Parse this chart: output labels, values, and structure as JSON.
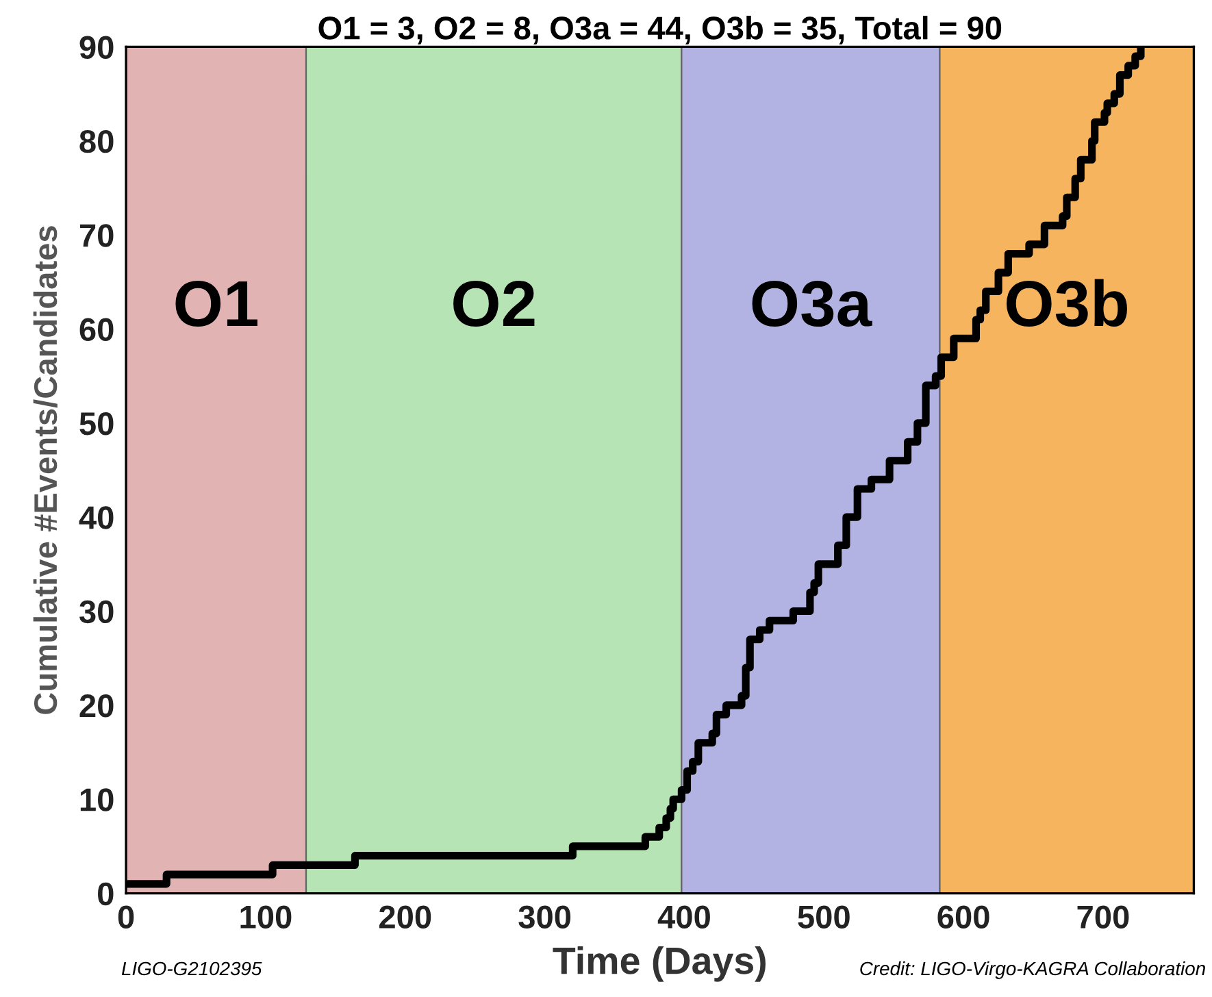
{
  "chart_data": {
    "type": "step",
    "title": "O1 = 3, O2 = 8, O3a = 44, O3b = 35, Total = 90",
    "xlabel": "Time (Days)",
    "ylabel": "Cumulative #Events/Candidates",
    "annotations": [
      "LIGO-G2102395",
      "Credit: LIGO-Virgo-KAGRA Collaboration"
    ],
    "bands": [
      {
        "axis": "x",
        "from": 0,
        "to": 129,
        "label": "O1",
        "color": "#e2b3b3"
      },
      {
        "axis": "x",
        "from": 129,
        "to": 398,
        "label": "O2",
        "color": "#b7e4b5"
      },
      {
        "axis": "x",
        "from": 398,
        "to": 583,
        "label": "O3a",
        "color": "#b3b3e3"
      },
      {
        "axis": "x",
        "from": 583,
        "to": 765,
        "label": "O3b",
        "color": "#f7b45e"
      }
    ],
    "series": [
      {
        "color": "#000000",
        "x": [
          1,
          29,
          105,
          164,
          320,
          372,
          382,
          387,
          390,
          392,
          398,
          402,
          406,
          410,
          420,
          423,
          430,
          441,
          444,
          447,
          454,
          461,
          478,
          490,
          493,
          496,
          510,
          516,
          524,
          534,
          547,
          560,
          567,
          573,
          580,
          584,
          593,
          609,
          612,
          616,
          625,
          632,
          647,
          658,
          671,
          674,
          680,
          684,
          692,
          694,
          701,
          703,
          708,
          712,
          718,
          723,
          727
        ],
        "values": [
          1,
          2,
          3,
          4,
          5,
          6,
          7,
          8,
          9,
          10,
          11,
          13,
          14,
          16,
          17,
          19,
          20,
          21,
          24,
          27,
          28,
          29,
          30,
          32,
          33,
          35,
          37,
          40,
          43,
          44,
          46,
          48,
          50,
          54,
          55,
          57,
          59,
          61,
          62,
          64,
          66,
          68,
          69,
          71,
          72,
          74,
          76,
          78,
          80,
          82,
          83,
          84,
          85,
          87,
          88,
          89,
          90
        ]
      }
    ],
    "xlim": [
      0,
      765
    ],
    "ylim": [
      0,
      90
    ],
    "xticks": [
      0,
      100,
      200,
      300,
      400,
      500,
      600,
      700
    ],
    "yticks": [
      0,
      10,
      20,
      30,
      40,
      50,
      60,
      70,
      80,
      90
    ],
    "legend": false,
    "line_style": "solid",
    "marker": "none"
  }
}
